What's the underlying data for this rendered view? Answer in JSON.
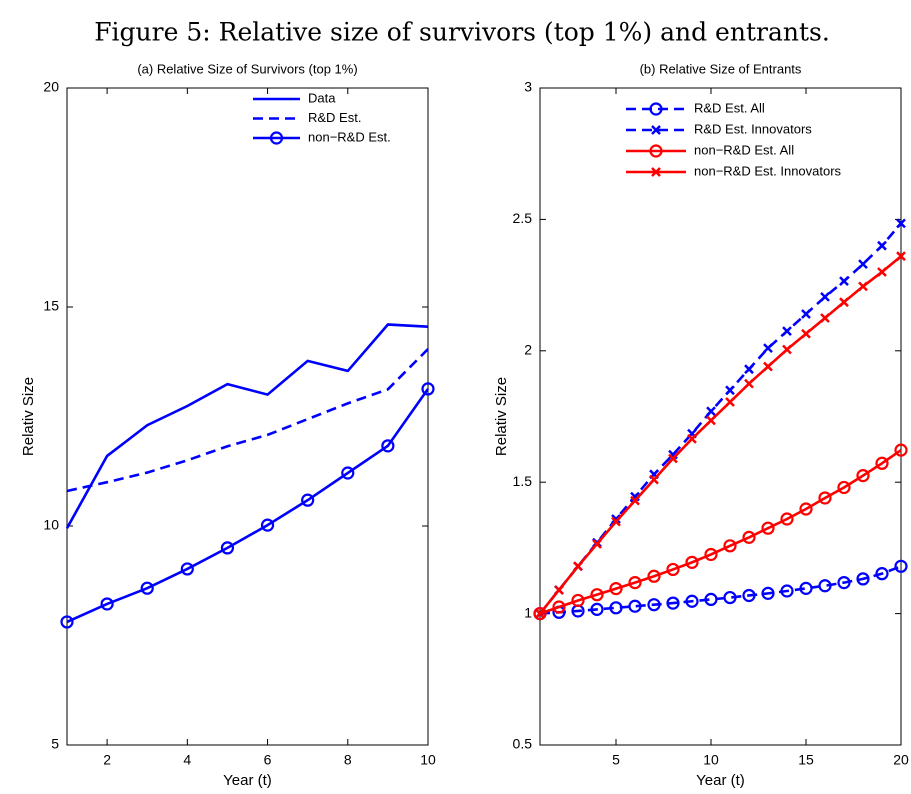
{
  "caption": "Figure 5: Relative size of survivors (top 1%) and entrants.",
  "chart_data": [
    {
      "type": "line",
      "title": "(a) Relative Size of Survivors (top 1%)",
      "x_label": "Year (t)",
      "y_label": "Relativ Size",
      "x": [
        1,
        2,
        3,
        4,
        5,
        6,
        7,
        8,
        9,
        10
      ],
      "xlim": [
        1,
        10
      ],
      "xticks": [
        2,
        4,
        6,
        8,
        10
      ],
      "ylim": [
        5,
        20
      ],
      "yticks": [
        5,
        10,
        15,
        20
      ],
      "legend": "upper right",
      "series": [
        {
          "name": "Data",
          "color": "#0000ff",
          "line_style": "solid",
          "marker": null,
          "values": [
            9.95,
            11.6,
            12.3,
            12.74,
            13.24,
            13.0,
            13.77,
            13.54,
            14.6,
            14.55
          ]
        },
        {
          "name": "R&D Est.",
          "color": "#0000ff",
          "line_style": "dashed",
          "marker": null,
          "values": [
            10.8,
            11.0,
            11.22,
            11.5,
            11.82,
            12.08,
            12.44,
            12.8,
            13.12,
            14.04
          ]
        },
        {
          "name": "non−R&D Est.",
          "color": "#0000ff",
          "line_style": "solid",
          "marker": "o",
          "values": [
            7.81,
            8.22,
            8.58,
            9.02,
            9.5,
            10.02,
            10.59,
            11.21,
            11.83,
            13.13
          ]
        }
      ]
    },
    {
      "type": "line",
      "title": "(b) Relative Size of Entrants",
      "x_label": "Year (t)",
      "y_label": "Relativ Size",
      "x": [
        1,
        2,
        3,
        4,
        5,
        6,
        7,
        8,
        9,
        10,
        11,
        12,
        13,
        14,
        15,
        16,
        17,
        18,
        19,
        20
      ],
      "xlim": [
        1,
        20
      ],
      "xticks": [
        5,
        10,
        15,
        20
      ],
      "ylim": [
        0.5,
        3
      ],
      "yticks": [
        0.5,
        1,
        1.5,
        2,
        2.5,
        3
      ],
      "legend": "upper left",
      "series": [
        {
          "name": "R&D Est. All",
          "color": "#0000ff",
          "line_style": "dashed",
          "marker": "o",
          "values": [
            1.0,
            1.005,
            1.01,
            1.016,
            1.022,
            1.028,
            1.034,
            1.04,
            1.047,
            1.054,
            1.061,
            1.069,
            1.077,
            1.086,
            1.096,
            1.106,
            1.118,
            1.132,
            1.152,
            1.18
          ]
        },
        {
          "name": "R&D Est. Innovators",
          "color": "#0000ff",
          "line_style": "dashed",
          "marker": "x",
          "values": [
            1.0,
            1.09,
            1.18,
            1.27,
            1.36,
            1.445,
            1.53,
            1.605,
            1.685,
            1.77,
            1.85,
            1.93,
            2.01,
            2.075,
            2.14,
            2.205,
            2.265,
            2.33,
            2.4,
            2.485
          ]
        },
        {
          "name": "non−R&D Est. All",
          "color": "#ff0000",
          "line_style": "solid",
          "marker": "o",
          "values": [
            1.0,
            1.025,
            1.05,
            1.072,
            1.095,
            1.118,
            1.142,
            1.168,
            1.195,
            1.225,
            1.258,
            1.29,
            1.325,
            1.36,
            1.398,
            1.44,
            1.48,
            1.525,
            1.572,
            1.622
          ]
        },
        {
          "name": "non−R&D Est. Innovators",
          "color": "#ff0000",
          "line_style": "solid",
          "marker": "x",
          "values": [
            1.0,
            1.09,
            1.18,
            1.265,
            1.35,
            1.43,
            1.51,
            1.59,
            1.665,
            1.735,
            1.805,
            1.875,
            1.94,
            2.005,
            2.065,
            2.125,
            2.185,
            2.245,
            2.3,
            2.36
          ]
        }
      ]
    }
  ]
}
